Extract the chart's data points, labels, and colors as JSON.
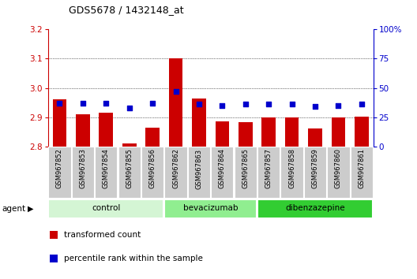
{
  "title": "GDS5678 / 1432148_at",
  "samples": [
    "GSM967852",
    "GSM967853",
    "GSM967854",
    "GSM967855",
    "GSM967856",
    "GSM967862",
    "GSM967863",
    "GSM967864",
    "GSM967865",
    "GSM967857",
    "GSM967858",
    "GSM967859",
    "GSM967860",
    "GSM967861"
  ],
  "red_values": [
    2.96,
    2.91,
    2.915,
    2.81,
    2.865,
    3.1,
    2.965,
    2.885,
    2.883,
    2.9,
    2.9,
    2.862,
    2.9,
    2.903
  ],
  "blue_values": [
    37,
    37,
    37,
    33,
    37,
    47,
    36,
    35,
    36,
    36,
    36,
    34,
    35,
    36
  ],
  "groups": [
    {
      "label": "control",
      "start": 0,
      "end": 5,
      "color": "#d4f5d4"
    },
    {
      "label": "bevacizumab",
      "start": 5,
      "end": 9,
      "color": "#90ee90"
    },
    {
      "label": "dibenzazepine",
      "start": 9,
      "end": 14,
      "color": "#32cd32"
    }
  ],
  "ylim_left": [
    2.8,
    3.2
  ],
  "ylim_right": [
    0,
    100
  ],
  "yticks_left": [
    2.8,
    2.9,
    3.0,
    3.1,
    3.2
  ],
  "yticks_right": [
    0,
    25,
    50,
    75,
    100
  ],
  "ytick_labels_right": [
    "0",
    "25",
    "50",
    "75",
    "100%"
  ],
  "bar_color": "#cc0000",
  "dot_color": "#0000cc",
  "bar_width": 0.6,
  "sample_box_color": "#cccccc",
  "legend_items": [
    {
      "color": "#cc0000",
      "label": "transformed count"
    },
    {
      "color": "#0000cc",
      "label": "percentile rank within the sample"
    }
  ],
  "agent_label": "agent"
}
